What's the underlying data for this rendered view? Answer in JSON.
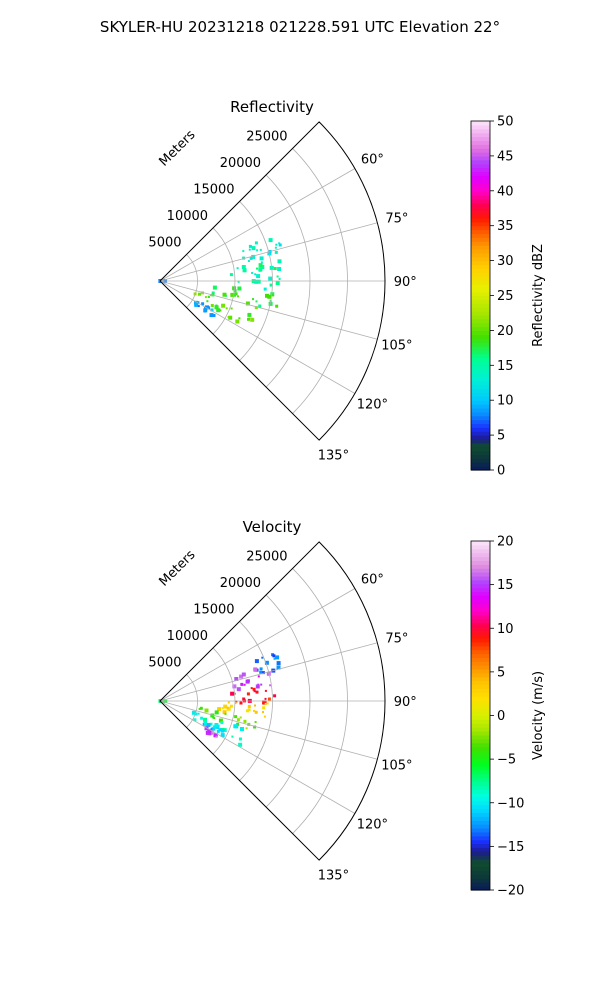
{
  "figure": {
    "suptitle": "SKYLER-HU  20231218  021228.591 UTC Elevation 22°"
  },
  "chart_data": [
    {
      "type": "heatmap",
      "projection": "polar sector (PPI)",
      "title": "Reflectivity",
      "range_axis_label": "Meters",
      "range_ticks": [
        5000,
        10000,
        15000,
        20000,
        25000
      ],
      "range_tick_labels": [
        "5000",
        "10000",
        "15000",
        "20000",
        "25000"
      ],
      "range_max": 30000,
      "azimuth_range_deg": [
        45,
        135
      ],
      "azimuth_ticks": [
        60,
        75,
        90,
        105,
        120,
        135
      ],
      "azimuth_tick_labels": [
        "60°",
        "75°",
        "90°",
        "105°",
        "120°",
        "135°"
      ],
      "grid": true,
      "colorbar": {
        "label": "Reflectivity dBZ",
        "min": 0,
        "max": 50,
        "ticks": [
          0,
          5,
          10,
          15,
          20,
          25,
          30,
          35,
          40,
          45,
          50
        ],
        "tick_labels": [
          "0",
          "5",
          "10",
          "15",
          "20",
          "25",
          "30",
          "35",
          "40",
          "45",
          "50"
        ]
      },
      "echo_regions": [
        {
          "az": [
            67,
            80
          ],
          "r": [
            11000,
            17000
          ],
          "value": 13
        },
        {
          "az": [
            79,
            96
          ],
          "r": [
            9500,
            17000
          ],
          "value": 15
        },
        {
          "az": [
            95,
            105
          ],
          "r": [
            7000,
            16000
          ],
          "value": 18
        },
        {
          "az": [
            104,
            118
          ],
          "r": [
            4500,
            13500
          ],
          "value": 20
        },
        {
          "az": [
            118,
            124
          ],
          "r": [
            5500,
            9000
          ],
          "value": 9
        },
        {
          "az": [
            87,
            93
          ],
          "r": [
            0,
            800
          ],
          "value": 8
        }
      ]
    },
    {
      "type": "heatmap",
      "projection": "polar sector (PPI)",
      "title": "Velocity",
      "range_axis_label": "Meters",
      "range_ticks": [
        5000,
        10000,
        15000,
        20000,
        25000
      ],
      "range_tick_labels": [
        "5000",
        "10000",
        "15000",
        "20000",
        "25000"
      ],
      "range_max": 30000,
      "azimuth_range_deg": [
        45,
        135
      ],
      "azimuth_ticks": [
        60,
        75,
        90,
        105,
        120,
        135
      ],
      "azimuth_tick_labels": [
        "60°",
        "75°",
        "90°",
        "105°",
        "120°",
        "135°"
      ],
      "grid": true,
      "colorbar": {
        "label": "Velocity (m/s)",
        "min": -20,
        "max": 20,
        "ticks": [
          -20,
          -15,
          -10,
          -5,
          0,
          5,
          10,
          15,
          20
        ],
        "tick_labels": [
          "−20",
          "−15",
          "−10",
          "−5",
          "0",
          "5",
          "10",
          "15",
          "20"
        ]
      },
      "echo_regions": [
        {
          "az": [
            67,
            76
          ],
          "r": [
            13500,
            17000
          ],
          "value": -13
        },
        {
          "az": [
            70,
            82
          ],
          "r": [
            10000,
            15000
          ],
          "value": 15
        },
        {
          "az": [
            82,
            92
          ],
          "r": [
            9500,
            15500
          ],
          "value": 9
        },
        {
          "az": [
            91,
            101
          ],
          "r": [
            7500,
            15000
          ],
          "value": 3
        },
        {
          "az": [
            100,
            108
          ],
          "r": [
            5000,
            14000
          ],
          "value": -3
        },
        {
          "az": [
            108,
            119
          ],
          "r": [
            4500,
            12500
          ],
          "value": -9
        },
        {
          "az": [
            113,
            120
          ],
          "r": [
            6500,
            9500
          ],
          "value": -11
        },
        {
          "az": [
            120,
            124
          ],
          "r": [
            7000,
            9000
          ],
          "value": 16
        },
        {
          "az": [
            89,
            93
          ],
          "r": [
            0,
            800
          ],
          "value": -7
        }
      ]
    }
  ]
}
